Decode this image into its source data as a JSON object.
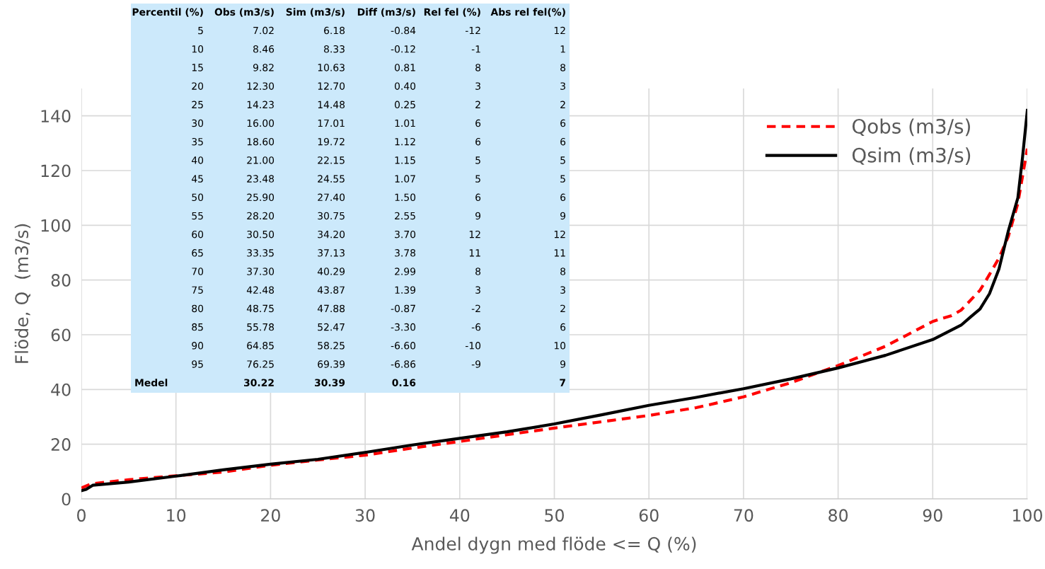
{
  "chart_data": {
    "type": "line",
    "xlabel": "Andel dygn med flöde <= Q (%)",
    "ylabel": "Flöde, Q  (m3/s)",
    "xlim": [
      0,
      100
    ],
    "xticks": [
      0,
      10,
      20,
      30,
      40,
      50,
      60,
      70,
      80,
      90,
      100
    ],
    "ylim": [
      0,
      150
    ],
    "yticks": [
      0,
      20,
      40,
      60,
      80,
      100,
      120,
      140
    ],
    "grid": true,
    "legend": "top right",
    "series": [
      {
        "name": "Qobs (m3/s)",
        "color": "#ff0000",
        "line_style": "dashed",
        "x": [
          0,
          1,
          5,
          10,
          15,
          20,
          25,
          30,
          35,
          40,
          45,
          50,
          55,
          60,
          65,
          70,
          75,
          80,
          85,
          90,
          91,
          92,
          93,
          95,
          96,
          97,
          98,
          99,
          99.5,
          100
        ],
        "values": [
          4,
          5.5,
          7.02,
          8.46,
          9.82,
          12.3,
          14.23,
          16.0,
          18.6,
          21.0,
          23.48,
          25.9,
          28.2,
          30.5,
          33.35,
          37.3,
          42.48,
          48.75,
          55.78,
          64.85,
          66,
          67,
          69,
          76.25,
          82,
          88,
          96,
          108,
          118,
          128
        ]
      },
      {
        "name": "Qsim (m3/s)",
        "color": "#000000",
        "line_style": "solid",
        "x": [
          0,
          0.5,
          1.2,
          5,
          10,
          15,
          20,
          25,
          30,
          35,
          40,
          45,
          50,
          55,
          60,
          65,
          70,
          75,
          80,
          85,
          90,
          93,
          94,
          95,
          96,
          97,
          98,
          99,
          99.5,
          100
        ],
        "values": [
          3,
          3.5,
          5,
          6.18,
          8.33,
          10.63,
          12.7,
          14.48,
          17.01,
          19.72,
          22.15,
          24.55,
          27.4,
          30.75,
          34.2,
          37.13,
          40.29,
          43.87,
          47.88,
          52.47,
          58.25,
          63.5,
          66.5,
          69.39,
          75,
          84,
          98,
          110,
          125,
          142
        ]
      }
    ],
    "annotations": [
      "Percentil (%)",
      "Obs (m3/s)",
      "Sim (m3/s)",
      "Diff (m3/s)",
      "Rel fel (%)",
      "Abs rel fel(%)",
      "5",
      "7.02",
      "6.18",
      "-0.84",
      "-12",
      "12",
      "10",
      "8.46",
      "8.33",
      "-0.12",
      "-1",
      "1",
      "15",
      "9.82",
      "10.63",
      "0.81",
      "8",
      "8",
      "20",
      "12.30",
      "12.70",
      "0.40",
      "3",
      "3",
      "25",
      "14.23",
      "14.48",
      "0.25",
      "2",
      "2",
      "30",
      "16.00",
      "17.01",
      "1.01",
      "6",
      "6",
      "35",
      "18.60",
      "19.72",
      "1.12",
      "6",
      "6",
      "40",
      "21.00",
      "22.15",
      "1.15",
      "5",
      "5",
      "45",
      "23.48",
      "24.55",
      "1.07",
      "5",
      "5",
      "50",
      "25.90",
      "27.40",
      "1.50",
      "6",
      "6",
      "55",
      "28.20",
      "30.75",
      "2.55",
      "9",
      "9",
      "60",
      "30.50",
      "34.20",
      "3.70",
      "12",
      "12",
      "65",
      "33.35",
      "37.13",
      "3.78",
      "11",
      "11",
      "70",
      "37.30",
      "40.29",
      "2.99",
      "8",
      "8",
      "75",
      "42.48",
      "43.87",
      "1.39",
      "3",
      "3",
      "80",
      "48.75",
      "47.88",
      "-0.87",
      "-2",
      "2",
      "85",
      "55.78",
      "52.47",
      "-3.30",
      "-6",
      "6",
      "90",
      "64.85",
      "58.25",
      "-6.60",
      "-10",
      "10",
      "95",
      "76.25",
      "69.39",
      "-6.86",
      "-9",
      "9",
      "Medel",
      "30.22",
      "30.39",
      "0.16",
      null,
      "7"
    ]
  }
}
